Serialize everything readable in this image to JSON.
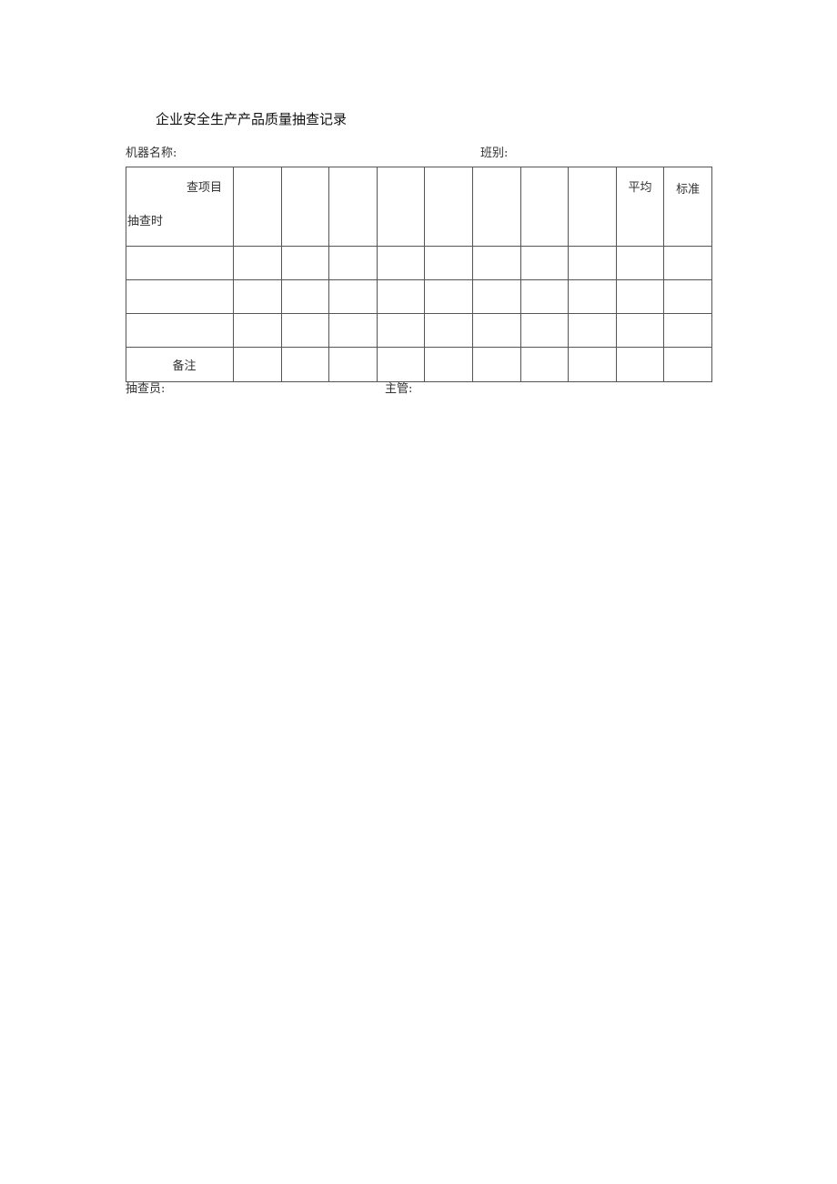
{
  "title": "企业安全生产产品质量抽查记录",
  "fields": {
    "machine_name": "机器名称:",
    "shift": "班别:",
    "inspector": "抽查员:",
    "supervisor": "主管:"
  },
  "table": {
    "header_diag_top": "查项目",
    "header_diag_bottom": "抽查时",
    "item_columns": 8,
    "average": "平均",
    "standard": "标准",
    "data_rows": 3,
    "remarks": "备注"
  }
}
